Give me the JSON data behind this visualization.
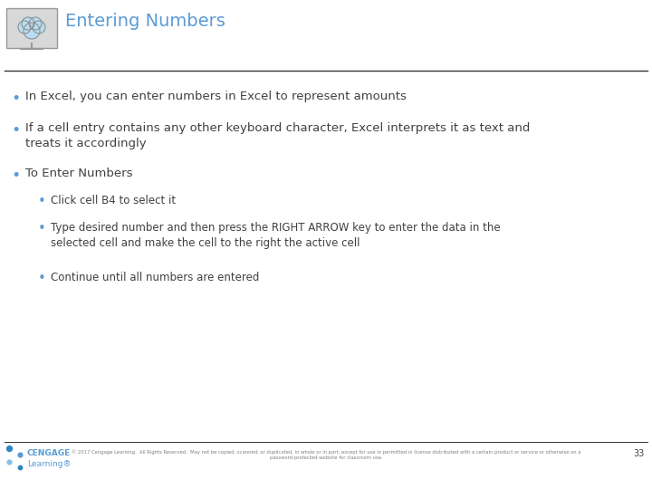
{
  "title": "Entering Numbers",
  "title_color": "#5b9bd5",
  "title_fontsize": 14,
  "bg_color": "#ffffff",
  "text_color": "#404040",
  "bullet_color": "#5b9bd5",
  "body_font_size": 9.5,
  "sub_font_size": 8.5,
  "bullets": [
    {
      "level": 1,
      "text": "In Excel, you can enter numbers in Excel to represent amounts"
    },
    {
      "level": 1,
      "text": "If a cell entry contains any other keyboard character, Excel interprets it as text and\ntreats it accordingly"
    },
    {
      "level": 1,
      "text": "To Enter Numbers"
    },
    {
      "level": 2,
      "text": "Click cell B4 to select it"
    },
    {
      "level": 2,
      "text": "Type desired number and then press the RIGHT ARROW key to enter the data in the\nselected cell and make the cell to the right the active cell"
    },
    {
      "level": 2,
      "text": "Continue until all numbers are entered"
    }
  ],
  "footer_text": "© 2017 Cengage Learning.  All Rights Reserved.  May not be copied, scanned, or duplicated, in whole or in part, except for use in permitted in license distributed with a certain product or service or otherwise on a\npassword-protected website for classroom use.",
  "footer_page": "33",
  "line_color": "#333333"
}
